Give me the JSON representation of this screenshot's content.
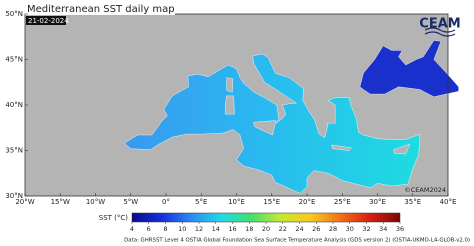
{
  "header": {
    "title": "Mediterranean SST daily map",
    "date": "21-02-2024",
    "logo": "CEAM"
  },
  "map": {
    "lat_labels": [
      "50°N",
      "45°N",
      "40°N",
      "35°N",
      "30°N"
    ],
    "lon_labels": [
      "20°W",
      "15°W",
      "10°W",
      "5°W",
      "0°",
      "5°E",
      "10°E",
      "15°E",
      "20°E",
      "25°E",
      "30°E",
      "35°E",
      "40°E"
    ],
    "copyright": "©CEAM2024"
  },
  "colorbar": {
    "label": "SST (°C)",
    "ticks": [
      4,
      6,
      8,
      10,
      12,
      14,
      16,
      18,
      20,
      22,
      24,
      26,
      28,
      30,
      32,
      34,
      36
    ],
    "colors": [
      "#0a0a8c",
      "#1530e0",
      "#2a8cf2",
      "#22d8e8",
      "#40e070",
      "#c8e830",
      "#f8c820",
      "#f07018",
      "#d81e10",
      "#7a0808"
    ]
  },
  "footer": {
    "source": "Data: GHRSST Level 4 OSTIA Global Foundation Sea Surface Temperature Analysis (GDS version 2) (OSTIA-UKMO-L4-GLOB-v2.0)"
  }
}
